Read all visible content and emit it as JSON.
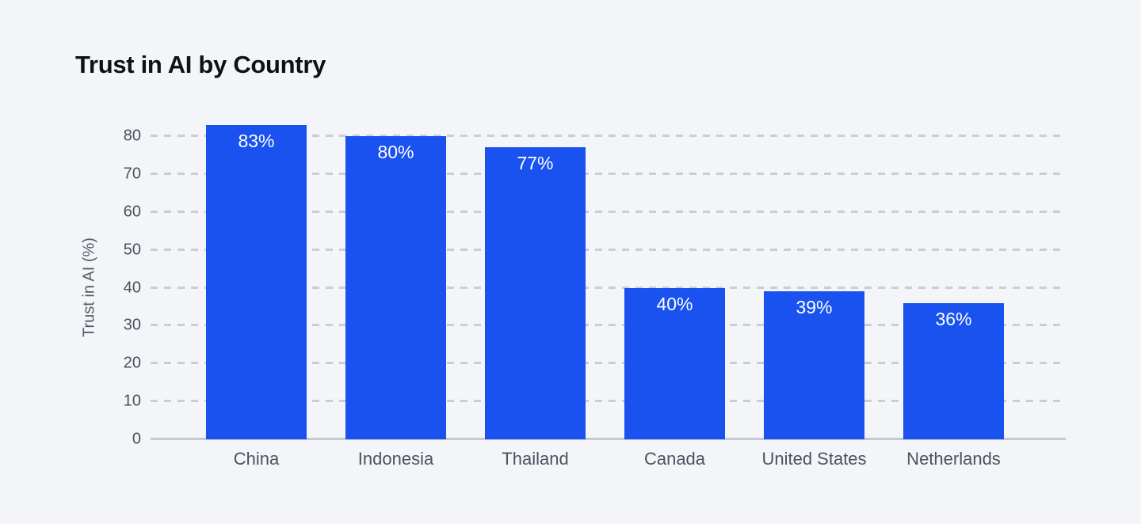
{
  "chart_data": {
    "type": "bar",
    "title": "Trust in AI by Country",
    "xlabel": "",
    "ylabel": "Trust in AI (%)",
    "categories": [
      "China",
      "Indonesia",
      "Thailand",
      "Canada",
      "United States",
      "Netherlands"
    ],
    "values": [
      83,
      80,
      77,
      40,
      39,
      36
    ],
    "value_labels": [
      "83%",
      "80%",
      "77%",
      "40%",
      "39%",
      "36%"
    ],
    "unit": "%",
    "yticks": [
      0,
      10,
      20,
      30,
      40,
      50,
      60,
      70,
      80
    ],
    "ylim": [
      0,
      86
    ],
    "grid": "horizontal-dashed",
    "legend": "none",
    "value_label_position": "inside-top",
    "colors": {
      "background": "#f4f5f8",
      "bar": "#1a52f0",
      "bar_label": "#ffffff",
      "gridline": "#c9cdd7",
      "axis_line": "#c4c9d3",
      "tick_text": "#4a505c",
      "category_text": "#4c525e",
      "title_text": "#101116",
      "axis_title_text": "#555b66"
    }
  }
}
